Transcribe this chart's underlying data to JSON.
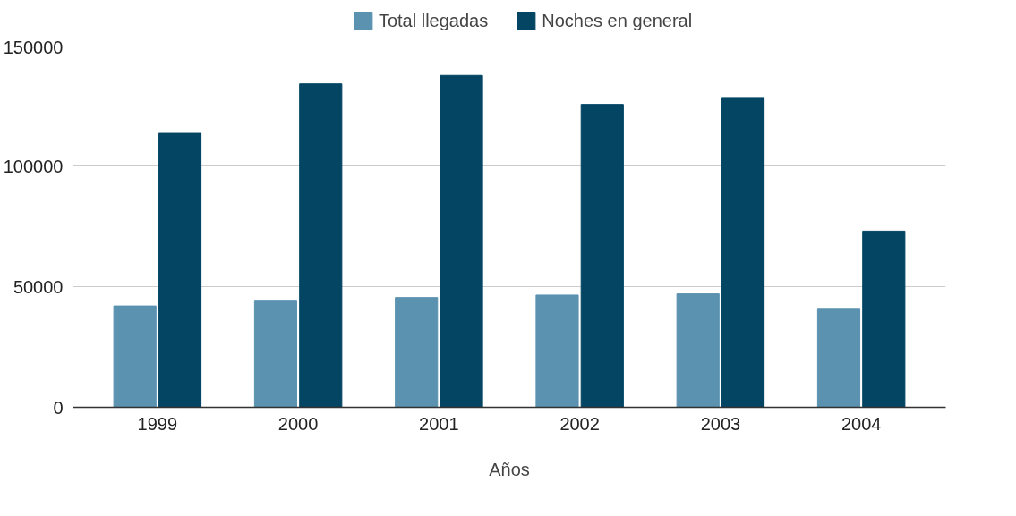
{
  "chart_data": {
    "type": "bar",
    "xlabel": "Años",
    "categories": [
      "1999",
      "2000",
      "2001",
      "2002",
      "2003",
      "2004"
    ],
    "series": [
      {
        "name": "Total llegadas",
        "color": "#5a92b0",
        "values": [
          42000,
          44000,
          45500,
          46500,
          47000,
          41000
        ]
      },
      {
        "name": "Noches en general",
        "color": "#034563",
        "values": [
          113500,
          134000,
          137500,
          125500,
          128000,
          73000
        ]
      }
    ],
    "ylim": [
      0,
      150000
    ],
    "yticks": [
      0,
      50000,
      100000,
      150000
    ],
    "grid": "y",
    "legend": "top"
  }
}
